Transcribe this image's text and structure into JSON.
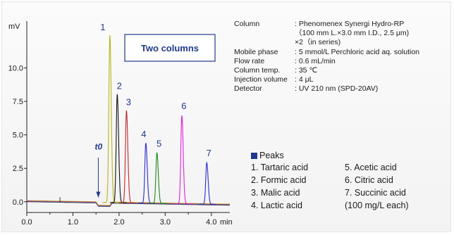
{
  "chart_data": {
    "type": "line",
    "ylabel": "mV",
    "xlabel": "min",
    "xlim": [
      0.0,
      4.4
    ],
    "ylim": [
      -0.8,
      13.5
    ],
    "xticks": [
      "0.0",
      "1.0",
      "2.0",
      "3.0",
      "4.0"
    ],
    "yticks": [
      "0.0",
      "2.5",
      "5.0",
      "7.5",
      "10.0"
    ],
    "box_label": "Two columns",
    "t0": {
      "label": "t0",
      "x": 1.55
    },
    "series": [
      {
        "peak": "1",
        "retention": 1.8,
        "height": 12.5,
        "color": "#b5b51a"
      },
      {
        "peak": "2",
        "retention": 1.96,
        "height": 8.1,
        "color": "#111111"
      },
      {
        "peak": "3",
        "retention": 2.16,
        "height": 6.9,
        "color": "#c0272d"
      },
      {
        "peak": "4",
        "retention": 2.58,
        "height": 4.5,
        "color": "#2b2bd0"
      },
      {
        "peak": "5",
        "retention": 2.82,
        "height": 3.8,
        "color": "#1a8a1a"
      },
      {
        "peak": "6",
        "retention": 3.36,
        "height": 6.6,
        "color": "#e020e0"
      },
      {
        "peak": "7",
        "retention": 3.9,
        "height": 3.1,
        "color": "#2b2bd0"
      }
    ]
  },
  "conditions": [
    {
      "label": "Column",
      "value": ": Phenomenex Synergi Hydro-RP\n（100 mm L.×3.0 mm I.D., 2.5 μm)\n×2（in series)"
    },
    {
      "label": "Mobile phase",
      "value": ": 5 mmol/L Perchloric acid aq. solution"
    },
    {
      "label": "Flow rate",
      "value": ": 0.6 mL/min"
    },
    {
      "label": "Column temp.",
      "value": ": 35 ℃"
    },
    {
      "label": "Injection volume",
      "value": ": 4 μL"
    },
    {
      "label": "Detector",
      "value": ": UV 210 nm (SPD-20AV)"
    }
  ],
  "peaks_title": "Peaks",
  "peaks": [
    "1.  Tartaric acid",
    "5.  Acetic acid",
    "2.  Formic acid",
    "6.  Citric acid",
    "3.  Malic acid",
    "7.  Succinic acid",
    "4.  Lactic acid",
    "(100 mg/L each)"
  ]
}
